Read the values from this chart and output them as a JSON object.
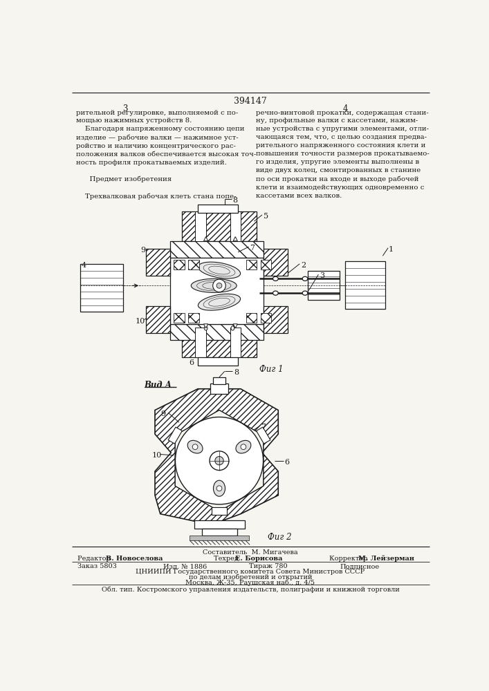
{
  "page_number": "394147",
  "col_left": "3",
  "col_right": "4",
  "bg_color": "#f7f5f0",
  "line_color": "#1a1a1a",
  "fig1_caption": "Фиг 1",
  "fig2_caption": "Фиг 2",
  "vid_a_label": "Вид А",
  "bottom_editor_label": "Редактор",
  "bottom_editor_name": "В. Новоселова",
  "bottom_composer_label": "Составитель",
  "bottom_composer_name": "М. Мигачева",
  "bottom_corrector_label": "Корректор",
  "bottom_corrector_name": "М. Лейзерман",
  "bottom_tech_label": "Техред",
  "bottom_tech_name": "Е. Борисова",
  "bottom_order": "Заказ 5803",
  "bottom_pub": "Изд. № 1886",
  "bottom_tirazh": "Тираж 780",
  "bottom_podpisno": "Подписное",
  "bottom_tsniip": "ЦНИИПИ Государственного комитета Совета Министров СССР",
  "bottom_dela": "по делам изобретений и открытий",
  "bottom_address": "Москва, Ж-35, Раушская наб., д. 4/5",
  "bottom_obl": "Обл. тип. Костромского управления издательств, полиграфии и книжной торговли",
  "left_text": "рительной регулировке, выполняемой с по-\nмощью нажимных устройств 8.\n    Благодаря напряженному состоянию цепи\nизделие — рабочие валки — нажимное уст-\nройство и наличию концентрического рас-\nположения валков обеспечивается высокая точ-\nность профиля прокатываемых изделий.\n\n      Предмет изобретения\n\n    Трехвалковая рабочая клеть стана попе-",
  "right_text": "речно-винтовой прокатки, содержащая стани-\nну, профильные валки с кассетами, нажим-\nные устройства с упругими элементами, отли-\nчающаяся тем, что, с целью создания предва-\nрительного напряженного состояния клети и\nповышения точности размеров прокатываемо-\nго изделия, упругие элементы выполнены в\nвиде двух колец, смонтированных в станине\nпо оси прокатки на входе и выходе рабочей\nклети и взаимодействующих одновременно с\nкассетами всех валков."
}
